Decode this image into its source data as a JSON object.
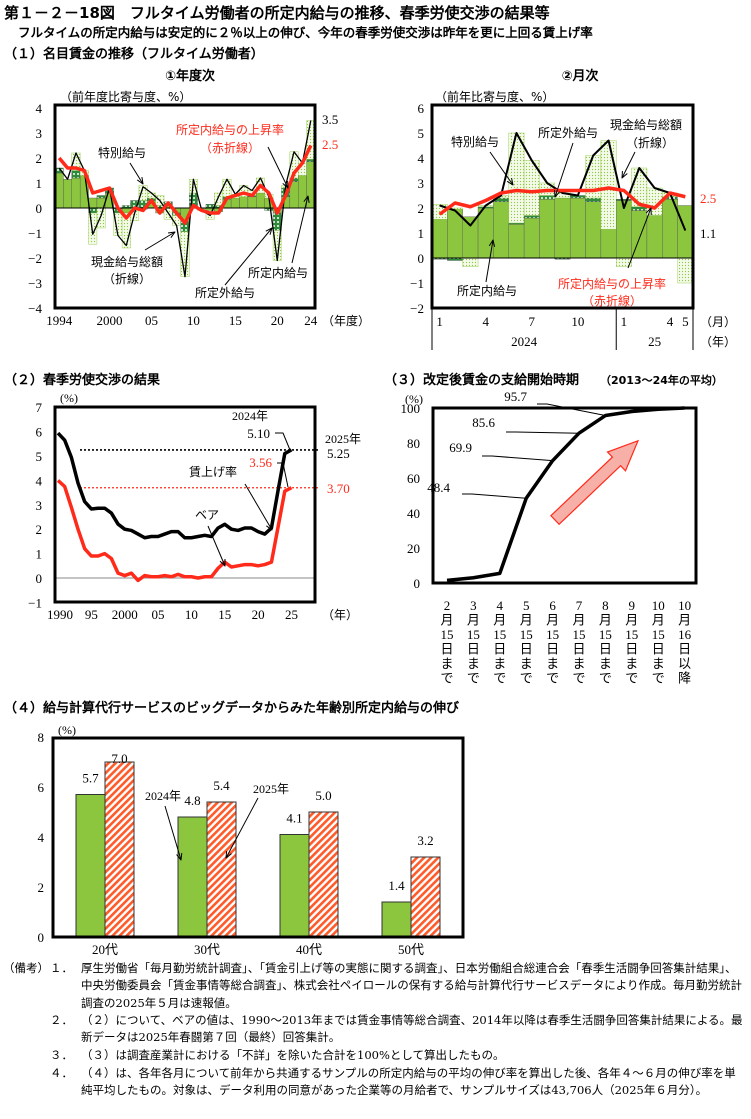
{
  "title": "第１－２－18図　フルタイム労働者の所定内給与の推移、春季労使交渉の結果等",
  "subtitle": "フルタイムの所定内給与は安定的に２％以上の伸び、今年の春季労使交渉は昨年を更に上回る賃上げ率",
  "section1": {
    "title": "（１）名目賃金の推移（フルタイム労働者）",
    "sub1": "①年度次",
    "sub2": "②月次"
  },
  "section2": {
    "title": "（２）春季労使交渉の結果"
  },
  "section3": {
    "title": "（３）改定後賃金の支給開始時期",
    "title_note": "（2013～24年の平均）"
  },
  "section4": {
    "title": "（４）給与計算代行サービスのビッグデータからみた年齢別所定内給与の伸び"
  },
  "colors": {
    "scheduled": "#8cc63f",
    "overtime": "#2e8b3a",
    "special": "#e9f5d6",
    "red": "#ff2a1a",
    "line": "#000000"
  },
  "chart_data": [
    {
      "type": "bar",
      "stacked": true,
      "ylabel": "（前年度比寄与度、%）",
      "xlabel": "（年度）",
      "ylim": [
        -4,
        4
      ],
      "yticks": [
        4,
        3,
        2,
        1,
        0,
        -1,
        -2,
        -3,
        -4
      ],
      "ytick_labels": [
        "4",
        "3",
        "2",
        "1",
        "0",
        "−1",
        "−2",
        "−3",
        "−4"
      ],
      "x": [
        1994,
        1995,
        1996,
        1997,
        1998,
        1999,
        2000,
        2001,
        2002,
        2003,
        2004,
        2005,
        2006,
        2007,
        2008,
        2009,
        2010,
        2011,
        2012,
        2013,
        2014,
        2015,
        2016,
        2017,
        2018,
        2019,
        2020,
        2021,
        2022,
        2023,
        2024
      ],
      "xticks": [
        1994,
        2000,
        2005,
        2010,
        2015,
        2020,
        2024
      ],
      "xtick_labels": [
        "1994",
        "2000",
        "05",
        "10",
        "15",
        "20",
        "24"
      ],
      "series": [
        {
          "name": "所定内給与",
          "kind": "bar",
          "values": [
            1.4,
            1.15,
            1.2,
            1.3,
            0.4,
            0.4,
            0.6,
            0.0,
            -0.2,
            0.0,
            -0.05,
            0.3,
            -0.2,
            0.15,
            -0.2,
            -0.55,
            0.1,
            -0.05,
            -0.1,
            -0.15,
            0.35,
            0.4,
            0.45,
            0.45,
            0.6,
            0.4,
            -0.2,
            0.45,
            1.05,
            1.3,
            1.85
          ]
        },
        {
          "name": "所定外給与",
          "kind": "bar",
          "values": [
            0.2,
            0.0,
            0.3,
            0.0,
            -0.2,
            0.1,
            0.2,
            -0.2,
            0.1,
            0.3,
            0.3,
            0.1,
            0.1,
            0.1,
            -0.1,
            -0.4,
            0.5,
            0.0,
            0.15,
            0.1,
            0.1,
            0.0,
            0.0,
            0.05,
            0.0,
            -0.1,
            -0.7,
            0.35,
            0.15,
            0.0,
            0.1
          ]
        },
        {
          "name": "特別給与",
          "kind": "bar",
          "values": [
            0.0,
            0.0,
            0.7,
            0.2,
            -1.25,
            -0.8,
            0.0,
            -0.9,
            -1.4,
            -0.5,
            0.6,
            0.2,
            0.4,
            -0.45,
            -0.4,
            -1.8,
            0.55,
            -0.05,
            -0.35,
            0.5,
            0.7,
            0.15,
            0.45,
            0.2,
            0.6,
            0.15,
            -1.2,
            0.1,
            1.05,
            0.5,
            1.55
          ]
        },
        {
          "name": "現金給与総額（折線）",
          "kind": "line",
          "values": [
            1.6,
            1.15,
            2.2,
            1.5,
            -1.05,
            -0.3,
            0.8,
            -1.1,
            -1.5,
            -0.2,
            0.85,
            0.6,
            0.3,
            -0.2,
            -0.7,
            -2.75,
            1.15,
            -0.1,
            -0.3,
            0.45,
            1.15,
            0.55,
            0.9,
            0.7,
            1.2,
            0.45,
            -2.1,
            0.9,
            2.25,
            1.8,
            3.5
          ]
        },
        {
          "name": "所定内給与の上昇率（赤折線）",
          "kind": "line",
          "values": [
            2.0,
            1.6,
            1.6,
            1.5,
            0.6,
            0.7,
            0.8,
            0.0,
            -0.4,
            0.0,
            -0.1,
            0.3,
            -0.2,
            0.2,
            -0.2,
            -0.6,
            0.1,
            -0.1,
            -0.2,
            -0.2,
            0.4,
            0.5,
            0.6,
            0.5,
            0.9,
            0.6,
            -0.2,
            0.5,
            1.4,
            1.8,
            2.5
          ]
        }
      ],
      "annotations": {
        "red_rate": "所定内給与の上昇率",
        "red_rate_sub": "（赤折線）",
        "special": "特別給与",
        "total": "現金給与総額",
        "total_sub": "（折線）",
        "overtime": "所定外給与",
        "scheduled": "所定内給与",
        "end_total": "3.5",
        "end_red": "2.5"
      }
    },
    {
      "type": "bar",
      "stacked": true,
      "ylabel": "（前年比寄与度、%）",
      "ylim": [
        -2,
        6
      ],
      "yticks": [
        6,
        5,
        4,
        3,
        2,
        1,
        0,
        -1,
        -2
      ],
      "ytick_labels": [
        "6",
        "5",
        "4",
        "3",
        "2",
        "1",
        "0",
        "−1",
        "−2"
      ],
      "x": [
        "2024-1",
        "2024-2",
        "2024-3",
        "2024-4",
        "2024-5",
        "2024-6",
        "2024-7",
        "2024-8",
        "2024-9",
        "2024-10",
        "2024-11",
        "2024-12",
        "2025-1",
        "2025-2",
        "2025-3",
        "2025-4",
        "2025-5"
      ],
      "month_tick_labels": [
        {
          "index": 0,
          "label": "1"
        },
        {
          "index": 3,
          "label": "4"
        },
        {
          "index": 6,
          "label": "7"
        },
        {
          "index": 9,
          "label": "10"
        },
        {
          "index": 12,
          "label": "1"
        },
        {
          "index": 15,
          "label": "4"
        },
        {
          "index": 16,
          "label": "5"
        }
      ],
      "year_labels": [
        "2024",
        "25"
      ],
      "month_unit": "（月）",
      "year_unit": "（年）",
      "series": [
        {
          "name": "所定内給与",
          "kind": "bar",
          "values": [
            1.55,
            1.95,
            1.65,
            2.0,
            2.25,
            1.35,
            1.6,
            2.35,
            2.4,
            2.4,
            2.25,
            1.15,
            2.3,
            1.9,
            1.7,
            2.35,
            2.1
          ]
        },
        {
          "name": "所定外給与",
          "kind": "bar",
          "values": [
            -0.05,
            -0.1,
            0.0,
            0.05,
            0.15,
            0.05,
            0.1,
            0.15,
            -0.05,
            0.1,
            0.15,
            0.0,
            0.05,
            0.15,
            0.0,
            0.1,
            0.0
          ]
        },
        {
          "name": "特別給与",
          "kind": "bar",
          "values": [
            0.6,
            0.05,
            -0.35,
            0.05,
            0.1,
            3.6,
            2.2,
            0.5,
            0.25,
            0.0,
            1.7,
            3.55,
            -0.35,
            1.55,
            1.1,
            0.15,
            -1.0
          ]
        },
        {
          "name": "現金給与総額（折線）",
          "kind": "line",
          "values": [
            2.1,
            1.9,
            1.3,
            2.1,
            2.5,
            5.0,
            3.9,
            3.0,
            2.6,
            2.5,
            4.1,
            4.7,
            2.0,
            3.6,
            2.8,
            2.6,
            1.1
          ]
        },
        {
          "name": "所定内給与の上昇率（赤折線）",
          "kind": "line",
          "values": [
            1.75,
            2.2,
            2.05,
            2.3,
            2.6,
            2.7,
            2.65,
            2.7,
            2.7,
            2.7,
            2.7,
            2.8,
            2.7,
            2.15,
            2.0,
            2.6,
            2.45
          ]
        }
      ],
      "annotations": {
        "special": "特別給与",
        "overtime": "所定外給与",
        "total": "現金給与総額",
        "total_sub": "（折線）",
        "scheduled": "所定内給与",
        "red_rate": "所定内給与の上昇率",
        "red_rate_sub": "（赤折線）",
        "end_red": "2.5",
        "end_total": "1.1"
      }
    },
    {
      "type": "line",
      "ylabel": "(%)",
      "xlabel": "（年）",
      "ylim": [
        -1,
        7
      ],
      "yticks": [
        7,
        6,
        5,
        4,
        3,
        2,
        1,
        0,
        -1
      ],
      "ytick_labels": [
        "7",
        "6",
        "5",
        "4",
        "3",
        "2",
        "1",
        "0",
        "−1"
      ],
      "x": [
        1990,
        1991,
        1992,
        1993,
        1994,
        1995,
        1996,
        1997,
        1998,
        1999,
        2000,
        2001,
        2002,
        2003,
        2004,
        2005,
        2006,
        2007,
        2008,
        2009,
        2010,
        2011,
        2012,
        2013,
        2014,
        2015,
        2016,
        2017,
        2018,
        2019,
        2020,
        2021,
        2022,
        2023,
        2024,
        2025
      ],
      "xticks": [
        1990,
        1995,
        2000,
        2005,
        2010,
        2015,
        2020,
        2025
      ],
      "xtick_labels": [
        "1990",
        "95",
        "2000",
        "05",
        "10",
        "15",
        "20",
        "25"
      ],
      "series": [
        {
          "name": "賃上げ率",
          "values": [
            5.94,
            5.65,
            4.95,
            3.89,
            3.13,
            2.83,
            2.86,
            2.86,
            2.66,
            2.21,
            2.0,
            1.95,
            1.8,
            1.65,
            1.7,
            1.7,
            1.8,
            1.9,
            1.9,
            1.65,
            1.65,
            1.7,
            1.75,
            1.7,
            2.05,
            2.2,
            2.0,
            1.95,
            2.05,
            2.05,
            1.9,
            1.8,
            2.05,
            3.6,
            5.1,
            5.25
          ]
        },
        {
          "name": "ベア",
          "values": [
            4.0,
            3.75,
            2.9,
            2.0,
            1.2,
            0.9,
            0.9,
            1.0,
            0.8,
            0.2,
            0.1,
            0.2,
            -0.1,
            0.1,
            0.05,
            0.05,
            0.1,
            0.05,
            0.15,
            0.05,
            0.05,
            0.0,
            0.05,
            0.05,
            0.4,
            0.65,
            0.45,
            0.5,
            0.55,
            0.55,
            0.5,
            0.55,
            0.65,
            2.1,
            3.56,
            3.7
          ]
        }
      ],
      "annotations": {
        "y2024": "2024年",
        "v2024_total": "5.10",
        "y2025": "2025年",
        "v2025_total": "5.25",
        "v2024_base": "3.56",
        "v2025_base": "3.70",
        "wage_rate": "賃上げ率",
        "base_up": "ベア"
      }
    },
    {
      "type": "line",
      "ylabel": "(%)",
      "ylim": [
        0,
        100
      ],
      "yticks": [
        0,
        20,
        40,
        60,
        80,
        100
      ],
      "categories": [
        [
          "2",
          "月",
          "15",
          "日",
          "ま",
          "で"
        ],
        [
          "3",
          "月",
          "15",
          "日",
          "ま",
          "で"
        ],
        [
          "4",
          "月",
          "15",
          "日",
          "ま",
          "で"
        ],
        [
          "5",
          "月",
          "15",
          "日",
          "ま",
          "で"
        ],
        [
          "6",
          "月",
          "15",
          "日",
          "ま",
          "で"
        ],
        [
          "7",
          "月",
          "15",
          "日",
          "ま",
          "で"
        ],
        [
          "8",
          "月",
          "15",
          "日",
          "ま",
          "で"
        ],
        [
          "9",
          "月",
          "15",
          "日",
          "ま",
          "で"
        ],
        [
          "10",
          "月",
          "15",
          "日",
          "ま",
          "で"
        ],
        [
          "10",
          "月",
          "16",
          "日",
          "以",
          "降"
        ]
      ],
      "values": [
        1.5,
        3.0,
        5.5,
        48.4,
        69.9,
        85.6,
        95.7,
        98.0,
        99.3,
        100.0
      ],
      "data_labels": [
        {
          "index": 3,
          "label": "48.4"
        },
        {
          "index": 4,
          "label": "69.9"
        },
        {
          "index": 5,
          "label": "85.6"
        },
        {
          "index": 6,
          "label": "95.7"
        }
      ]
    },
    {
      "type": "bar",
      "ylabel": "(%)",
      "ylim": [
        0,
        8
      ],
      "yticks": [
        0,
        2,
        4,
        6,
        8
      ],
      "categories": [
        "20代",
        "30代",
        "40代",
        "50代"
      ],
      "series": [
        {
          "name": "2024年",
          "values": [
            5.7,
            4.8,
            4.1,
            1.4
          ],
          "labels": [
            "5.7",
            "4.8",
            "4.1",
            "1.4"
          ]
        },
        {
          "name": "2025年",
          "values": [
            7.0,
            5.4,
            5.0,
            3.2
          ],
          "labels": [
            "7.0",
            "5.4",
            "5.0",
            "3.2"
          ]
        }
      ]
    }
  ],
  "notes": {
    "label": "（備考）",
    "items": [
      {
        "num": "１．",
        "text": "厚生労働省「毎月勤労統計調査」、「賃金引上げ等の実態に関する調査」、日本労働組合総連合会「春季生活闘争回答集計結果」、中央労働委員会「賃金事情等総合調査」、株式会社ペイロールの保有する給与計算代行サービスデータにより作成。毎月勤労統計調査の2025年５月は速報値。"
      },
      {
        "num": "２．",
        "text": "（２）について、ベアの値は、1990～2013年までは賃金事情等総合調査、2014年以降は春季生活闘争回答集計結果による。最新データは2025年春闘第７回（最終）回答集計。"
      },
      {
        "num": "３．",
        "text": "（３）は調査産業計における「不詳」を除いた合計を100%として算出したもの。"
      },
      {
        "num": "４．",
        "text": "（４）は、各年各月について前年から共通するサンプルの所定内給与の平均の伸び率を算出した後、各年４～６月の伸び率を単純平均したもの。対象は、データ利用の同意があった企業等の月給者で、サンプルサイズは43,706人（2025年６月分）。"
      }
    ]
  }
}
